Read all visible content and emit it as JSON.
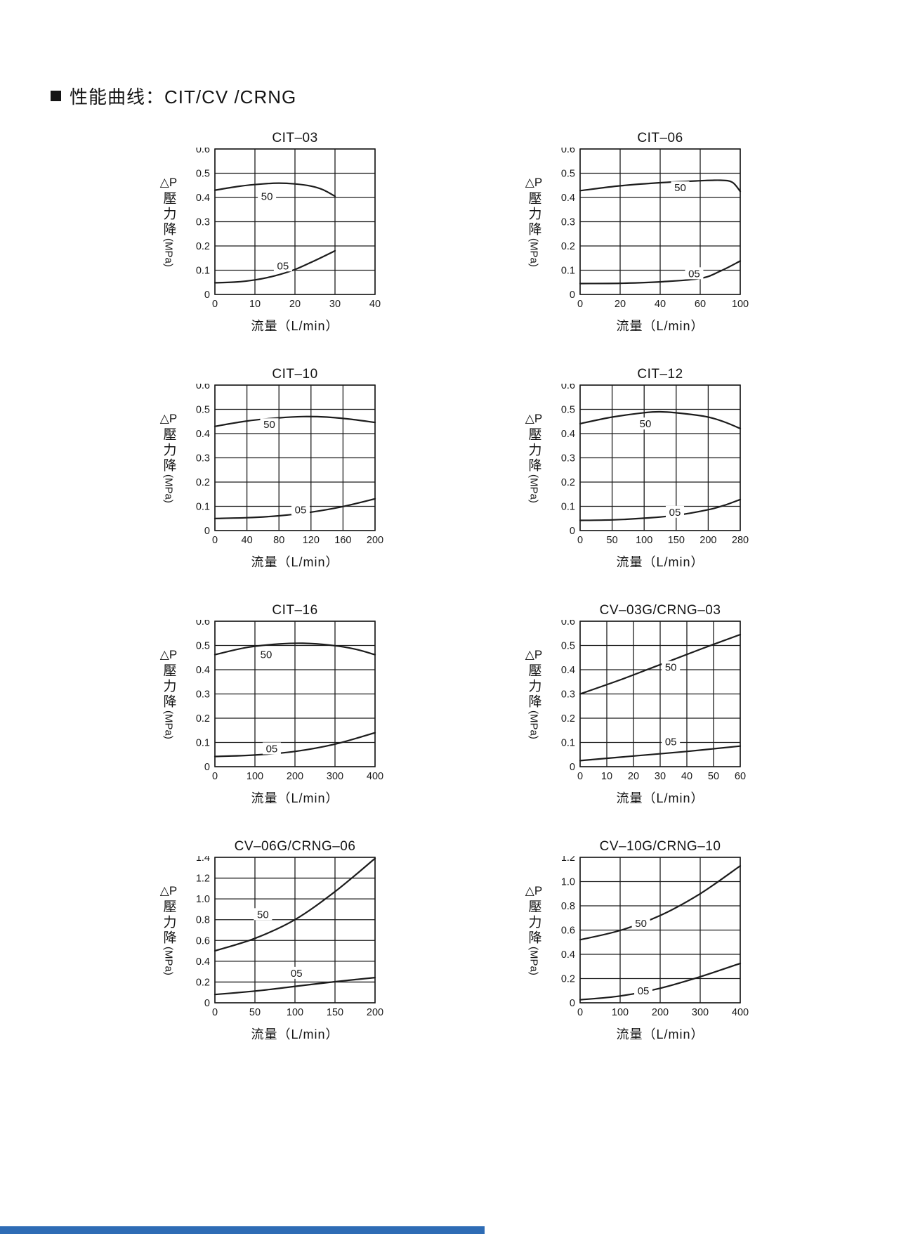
{
  "page": {
    "title": "性能曲线：CIT/CV /CRNG",
    "footer_accent_color": "#2e6cb5",
    "line_color": "#1c1c1c"
  },
  "axis": {
    "ylabel_dp": "△P",
    "ylabel_cjk": "壓力降",
    "ylabel_unit": "(MPa)"
  },
  "chart_data": [
    {
      "type": "line",
      "title": "CIT–03",
      "xlabel": "流量（L/min）",
      "ylabel": "△P 壓力降(MPa)",
      "ylim": [
        0,
        0.6
      ],
      "y_ticks": [
        0,
        0.1,
        0.2,
        0.3,
        0.4,
        0.5,
        0.6
      ],
      "x_ticks": [
        0,
        10,
        20,
        30,
        40
      ],
      "series": [
        {
          "name": "50",
          "label_at": [
            13,
            0.405
          ],
          "points": [
            [
              0,
              0.43
            ],
            [
              6,
              0.446
            ],
            [
              12,
              0.456
            ],
            [
              16,
              0.459
            ],
            [
              20,
              0.456
            ],
            [
              24,
              0.447
            ],
            [
              27,
              0.432
            ],
            [
              30,
              0.405
            ]
          ]
        },
        {
          "name": "05",
          "label_at": [
            17,
            0.118
          ],
          "points": [
            [
              0,
              0.048
            ],
            [
              5,
              0.051
            ],
            [
              10,
              0.06
            ],
            [
              15,
              0.077
            ],
            [
              20,
              0.103
            ],
            [
              25,
              0.14
            ],
            [
              30,
              0.18
            ]
          ]
        }
      ]
    },
    {
      "type": "line",
      "title": "CIT–06",
      "xlabel": "流量（L/min）",
      "ylabel": "△P 壓力降(MPa)",
      "ylim": [
        0,
        0.6
      ],
      "y_ticks": [
        0,
        0.1,
        0.2,
        0.3,
        0.4,
        0.5,
        0.6
      ],
      "x_ticks": [
        0,
        20,
        40,
        60,
        100
      ],
      "series": [
        {
          "name": "50",
          "label_at": [
            50,
            0.44
          ],
          "points": [
            [
              0,
              0.428
            ],
            [
              20,
              0.448
            ],
            [
              40,
              0.461
            ],
            [
              60,
              0.469
            ],
            [
              80,
              0.471
            ],
            [
              92,
              0.463
            ],
            [
              100,
              0.425
            ]
          ]
        },
        {
          "name": "05",
          "label_at": [
            57,
            0.086
          ],
          "points": [
            [
              0,
              0.045
            ],
            [
              20,
              0.046
            ],
            [
              40,
              0.052
            ],
            [
              60,
              0.066
            ],
            [
              80,
              0.096
            ],
            [
              100,
              0.138
            ]
          ]
        }
      ]
    },
    {
      "type": "line",
      "title": "CIT–10",
      "xlabel": "流量（L/min）",
      "ylabel": "△P 壓力降(MPa)",
      "ylim": [
        0,
        0.6
      ],
      "y_ticks": [
        0,
        0.1,
        0.2,
        0.3,
        0.4,
        0.5,
        0.6
      ],
      "x_ticks": [
        0,
        40,
        80,
        120,
        160,
        200
      ],
      "series": [
        {
          "name": "50",
          "label_at": [
            68,
            0.437
          ],
          "points": [
            [
              0,
              0.43
            ],
            [
              40,
              0.452
            ],
            [
              80,
              0.465
            ],
            [
              110,
              0.47
            ],
            [
              140,
              0.468
            ],
            [
              170,
              0.459
            ],
            [
              200,
              0.446
            ]
          ]
        },
        {
          "name": "05",
          "label_at": [
            107,
            0.086
          ],
          "points": [
            [
              0,
              0.05
            ],
            [
              40,
              0.053
            ],
            [
              80,
              0.061
            ],
            [
              120,
              0.076
            ],
            [
              160,
              0.099
            ],
            [
              200,
              0.131
            ]
          ]
        }
      ]
    },
    {
      "type": "line",
      "title": "CIT–12",
      "xlabel": "流量（L/min）",
      "ylabel": "△P 壓力降(MPa)",
      "ylim": [
        0,
        0.6
      ],
      "y_ticks": [
        0,
        0.1,
        0.2,
        0.3,
        0.4,
        0.5,
        0.6
      ],
      "x_ticks": [
        0,
        50,
        100,
        150,
        200,
        280
      ],
      "series": [
        {
          "name": "50",
          "label_at": [
            102,
            0.44
          ],
          "points": [
            [
              0,
              0.441
            ],
            [
              50,
              0.468
            ],
            [
              100,
              0.486
            ],
            [
              125,
              0.49
            ],
            [
              160,
              0.483
            ],
            [
              200,
              0.468
            ],
            [
              240,
              0.448
            ],
            [
              280,
              0.421
            ]
          ]
        },
        {
          "name": "05",
          "label_at": [
            148,
            0.076
          ],
          "points": [
            [
              0,
              0.042
            ],
            [
              50,
              0.044
            ],
            [
              100,
              0.051
            ],
            [
              150,
              0.063
            ],
            [
              200,
              0.086
            ],
            [
              240,
              0.104
            ],
            [
              280,
              0.128
            ]
          ]
        }
      ]
    },
    {
      "type": "line",
      "title": "CIT–16",
      "xlabel": "流量（L/min）",
      "ylabel": "△P 壓力降(MPa)",
      "ylim": [
        0,
        0.6
      ],
      "y_ticks": [
        0,
        0.1,
        0.2,
        0.3,
        0.4,
        0.5,
        0.6
      ],
      "x_ticks": [
        0,
        100,
        200,
        300,
        400
      ],
      "series": [
        {
          "name": "50",
          "label_at": [
            128,
            0.462
          ],
          "points": [
            [
              0,
              0.462
            ],
            [
              80,
              0.492
            ],
            [
              160,
              0.506
            ],
            [
              220,
              0.509
            ],
            [
              290,
              0.501
            ],
            [
              350,
              0.485
            ],
            [
              400,
              0.462
            ]
          ]
        },
        {
          "name": "05",
          "label_at": [
            142,
            0.074
          ],
          "points": [
            [
              0,
              0.042
            ],
            [
              100,
              0.048
            ],
            [
              200,
              0.063
            ],
            [
              300,
              0.093
            ],
            [
              400,
              0.14
            ]
          ]
        }
      ]
    },
    {
      "type": "line",
      "title": "CV–03G/CRNG–03",
      "xlabel": "流量（L/min）",
      "ylabel": "△P 壓力降(MPa)",
      "ylim": [
        0,
        0.6
      ],
      "y_ticks": [
        0,
        0.1,
        0.2,
        0.3,
        0.4,
        0.5,
        0.6
      ],
      "x_ticks": [
        0,
        10,
        20,
        30,
        40,
        50,
        60
      ],
      "series": [
        {
          "name": "50",
          "label_at": [
            34,
            0.41
          ],
          "points": [
            [
              0,
              0.3
            ],
            [
              15,
              0.358
            ],
            [
              30,
              0.421
            ],
            [
              45,
              0.484
            ],
            [
              60,
              0.545
            ]
          ]
        },
        {
          "name": "05",
          "label_at": [
            34,
            0.103
          ],
          "points": [
            [
              0,
              0.025
            ],
            [
              20,
              0.044
            ],
            [
              40,
              0.063
            ],
            [
              60,
              0.085
            ]
          ]
        }
      ]
    },
    {
      "type": "line",
      "title": "CV–06G/CRNG–06",
      "xlabel": "流量（L/min）",
      "ylabel": "△P 壓力降(MPa)",
      "ylim": [
        0,
        1.4
      ],
      "y_ticks": [
        0,
        0.2,
        0.4,
        0.6,
        0.8,
        1.0,
        1.2,
        1.4
      ],
      "x_ticks": [
        0,
        50,
        100,
        150,
        200
      ],
      "series": [
        {
          "name": "50",
          "label_at": [
            60,
            0.85
          ],
          "points": [
            [
              0,
              0.5
            ],
            [
              50,
              0.62
            ],
            [
              100,
              0.8
            ],
            [
              150,
              1.07
            ],
            [
              200,
              1.39
            ]
          ]
        },
        {
          "name": "05",
          "label_at": [
            102,
            0.285
          ],
          "points": [
            [
              0,
              0.08
            ],
            [
              50,
              0.113
            ],
            [
              100,
              0.158
            ],
            [
              150,
              0.203
            ],
            [
              200,
              0.243
            ]
          ]
        }
      ]
    },
    {
      "type": "line",
      "title": "CV–10G/CRNG–10",
      "xlabel": "流量（L/min）",
      "ylabel": "△P 壓力降(MPa)",
      "ylim": [
        0,
        1.2
      ],
      "y_ticks": [
        0,
        0.2,
        0.4,
        0.6,
        0.8,
        1.0,
        1.2
      ],
      "x_ticks": [
        0,
        100,
        200,
        300,
        400
      ],
      "series": [
        {
          "name": "50",
          "label_at": [
            152,
            0.655
          ],
          "points": [
            [
              0,
              0.52
            ],
            [
              100,
              0.597
            ],
            [
              200,
              0.72
            ],
            [
              300,
              0.9
            ],
            [
              400,
              1.13
            ]
          ]
        },
        {
          "name": "05",
          "label_at": [
            158,
            0.1
          ],
          "points": [
            [
              0,
              0.025
            ],
            [
              100,
              0.056
            ],
            [
              200,
              0.12
            ],
            [
              300,
              0.215
            ],
            [
              400,
              0.325
            ]
          ]
        }
      ]
    }
  ]
}
